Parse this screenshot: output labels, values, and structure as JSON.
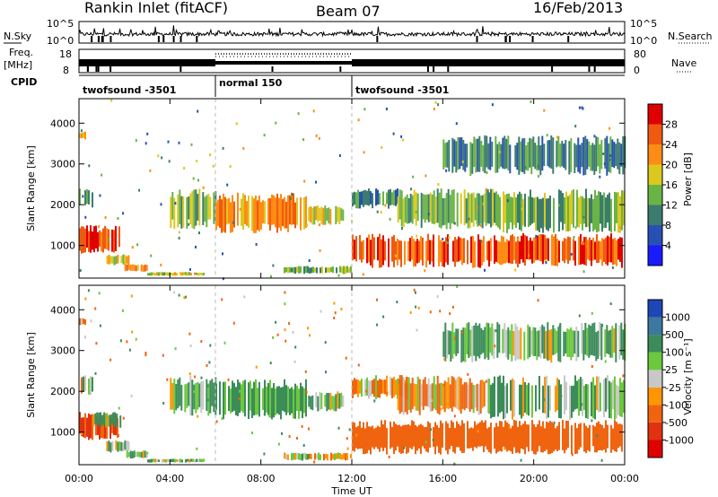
{
  "header": {
    "station": "Rankin Inlet (fitACF)",
    "beam": "Beam 07",
    "date": "16/Feb/2013"
  },
  "side_labels": {
    "nsky": "N.Sky",
    "freq": "Freq.",
    "mhz": "[MHz]",
    "cpid": "CPID",
    "nsearch": "N.Search",
    "nave": "Nave"
  },
  "top_axes": {
    "nsky_ticks": [
      "10^5",
      "10^0"
    ],
    "nsearch_ticks": [
      "10^5",
      "10^0"
    ],
    "freq_ticks": [
      "18",
      "8"
    ],
    "nave_ticks": [
      "80",
      "0"
    ]
  },
  "cpid_segments": [
    {
      "label": "twofsound -3501",
      "start_hour": 0,
      "end_hour": 6
    },
    {
      "label": "normal 150",
      "start_hour": 6,
      "end_hour": 12
    },
    {
      "label": "twofsound -3501",
      "start_hour": 12,
      "end_hour": 24
    }
  ],
  "x_axis": {
    "label": "Time UT",
    "ticks": [
      "00:00",
      "04:00",
      "08:00",
      "12:00",
      "16:00",
      "20:00",
      "00:00"
    ],
    "range_hours": [
      0,
      24
    ]
  },
  "power_colorbar": {
    "label": "Power [dB]",
    "ticks": [
      "4",
      "8",
      "12",
      "16",
      "20",
      "24",
      "28"
    ],
    "colors": [
      "#1a1aff",
      "#2850b4",
      "#3c7c6e",
      "#6ab446",
      "#dcc81e",
      "#ff8c14",
      "#f05a10",
      "#e00000"
    ]
  },
  "velocity_colorbar": {
    "label": "Velocity [m s⁻¹]",
    "ticks": [
      "1000",
      "500",
      "100",
      "25",
      "-25",
      "-100",
      "-500",
      "-1000"
    ],
    "colors": [
      "#1e46b4",
      "#3c78a0",
      "#3c8c5a",
      "#6cc83c",
      "#c8c8c8",
      "#ff9600",
      "#f06410",
      "#e03210",
      "#e00000"
    ]
  },
  "chart_data": [
    {
      "type": "heatmap",
      "panel": "power",
      "ylabel": "Slant Range [km]",
      "yticks": [
        "1000",
        "2000",
        "3000",
        "4000"
      ],
      "ylim": [
        200,
        4600
      ],
      "xlim_hours": [
        0,
        24
      ],
      "regions": [
        {
          "t0": 0.0,
          "t1": 1.8,
          "r0": 800,
          "r1": 1500,
          "v": 26
        },
        {
          "t0": 0.0,
          "t1": 0.6,
          "r0": 1900,
          "r1": 2400,
          "v": 12
        },
        {
          "t0": 0.0,
          "t1": 0.3,
          "r0": 3600,
          "r1": 3800,
          "v": 20
        },
        {
          "t0": 1.2,
          "t1": 2.2,
          "r0": 500,
          "r1": 800,
          "v": 18
        },
        {
          "t0": 2.0,
          "t1": 3.0,
          "r0": 350,
          "r1": 550,
          "v": 22
        },
        {
          "t0": 3.0,
          "t1": 5.5,
          "r0": 250,
          "r1": 350,
          "v": 18
        },
        {
          "t0": 4.0,
          "t1": 6.0,
          "r0": 1400,
          "r1": 2400,
          "v": 14
        },
        {
          "t0": 6.0,
          "t1": 10.0,
          "r0": 1300,
          "r1": 2300,
          "v": 22
        },
        {
          "t0": 10.0,
          "t1": 11.6,
          "r0": 1500,
          "r1": 2000,
          "v": 18
        },
        {
          "t0": 9.0,
          "t1": 12.0,
          "r0": 300,
          "r1": 500,
          "v": 14
        },
        {
          "t0": 12.0,
          "t1": 24.0,
          "r0": 450,
          "r1": 1300,
          "v": 26
        },
        {
          "t0": 12.0,
          "t1": 14.0,
          "r0": 1900,
          "r1": 2400,
          "v": 10
        },
        {
          "t0": 14.0,
          "t1": 18.0,
          "r0": 1400,
          "r1": 2400,
          "v": 14
        },
        {
          "t0": 18.0,
          "t1": 24.0,
          "r0": 1300,
          "r1": 2400,
          "v": 14
        },
        {
          "t0": 16.0,
          "t1": 24.0,
          "r0": 2700,
          "r1": 3700,
          "v": 10
        }
      ]
    },
    {
      "type": "heatmap",
      "panel": "velocity",
      "ylabel": "Slant Range [km]",
      "yticks": [
        "1000",
        "2000",
        "3000",
        "4000"
      ],
      "ylim": [
        200,
        4600
      ],
      "xlim_hours": [
        0,
        24
      ],
      "regions": [
        {
          "t0": 0.0,
          "t1": 1.8,
          "r0": 800,
          "r1": 1500,
          "v": -500
        },
        {
          "t0": 0.6,
          "t1": 1.8,
          "r0": 1100,
          "r1": 1500,
          "v": 100
        },
        {
          "t0": 0.0,
          "t1": 0.6,
          "r0": 1900,
          "r1": 2400,
          "v": 0
        },
        {
          "t0": 0.0,
          "t1": 0.3,
          "r0": 3600,
          "r1": 3800,
          "v": -100
        },
        {
          "t0": 1.2,
          "t1": 2.2,
          "r0": 500,
          "r1": 800,
          "v": 100
        },
        {
          "t0": 2.0,
          "t1": 3.0,
          "r0": 350,
          "r1": 550,
          "v": 100
        },
        {
          "t0": 3.0,
          "t1": 5.5,
          "r0": 250,
          "r1": 350,
          "v": 100
        },
        {
          "t0": 4.0,
          "t1": 6.0,
          "r0": 1400,
          "r1": 2400,
          "v": 100
        },
        {
          "t0": 6.0,
          "t1": 10.0,
          "r0": 1300,
          "r1": 2300,
          "v": 200
        },
        {
          "t0": 10.0,
          "t1": 11.6,
          "r0": 1500,
          "r1": 2000,
          "v": 100
        },
        {
          "t0": 12.0,
          "t1": 14.5,
          "r0": 1800,
          "r1": 2400,
          "v": -100
        },
        {
          "t0": 9.0,
          "t1": 12.0,
          "r0": 300,
          "r1": 500,
          "v": 0
        },
        {
          "t0": 12.0,
          "t1": 24.0,
          "r0": 450,
          "r1": 1300,
          "v": -300
        },
        {
          "t0": 14.0,
          "t1": 18.0,
          "r0": 1400,
          "r1": 2400,
          "v": -100
        },
        {
          "t0": 18.0,
          "t1": 24.0,
          "r0": 1300,
          "r1": 2400,
          "v": 100
        },
        {
          "t0": 16.0,
          "t1": 24.0,
          "r0": 2700,
          "r1": 3700,
          "v": 100
        }
      ]
    }
  ]
}
